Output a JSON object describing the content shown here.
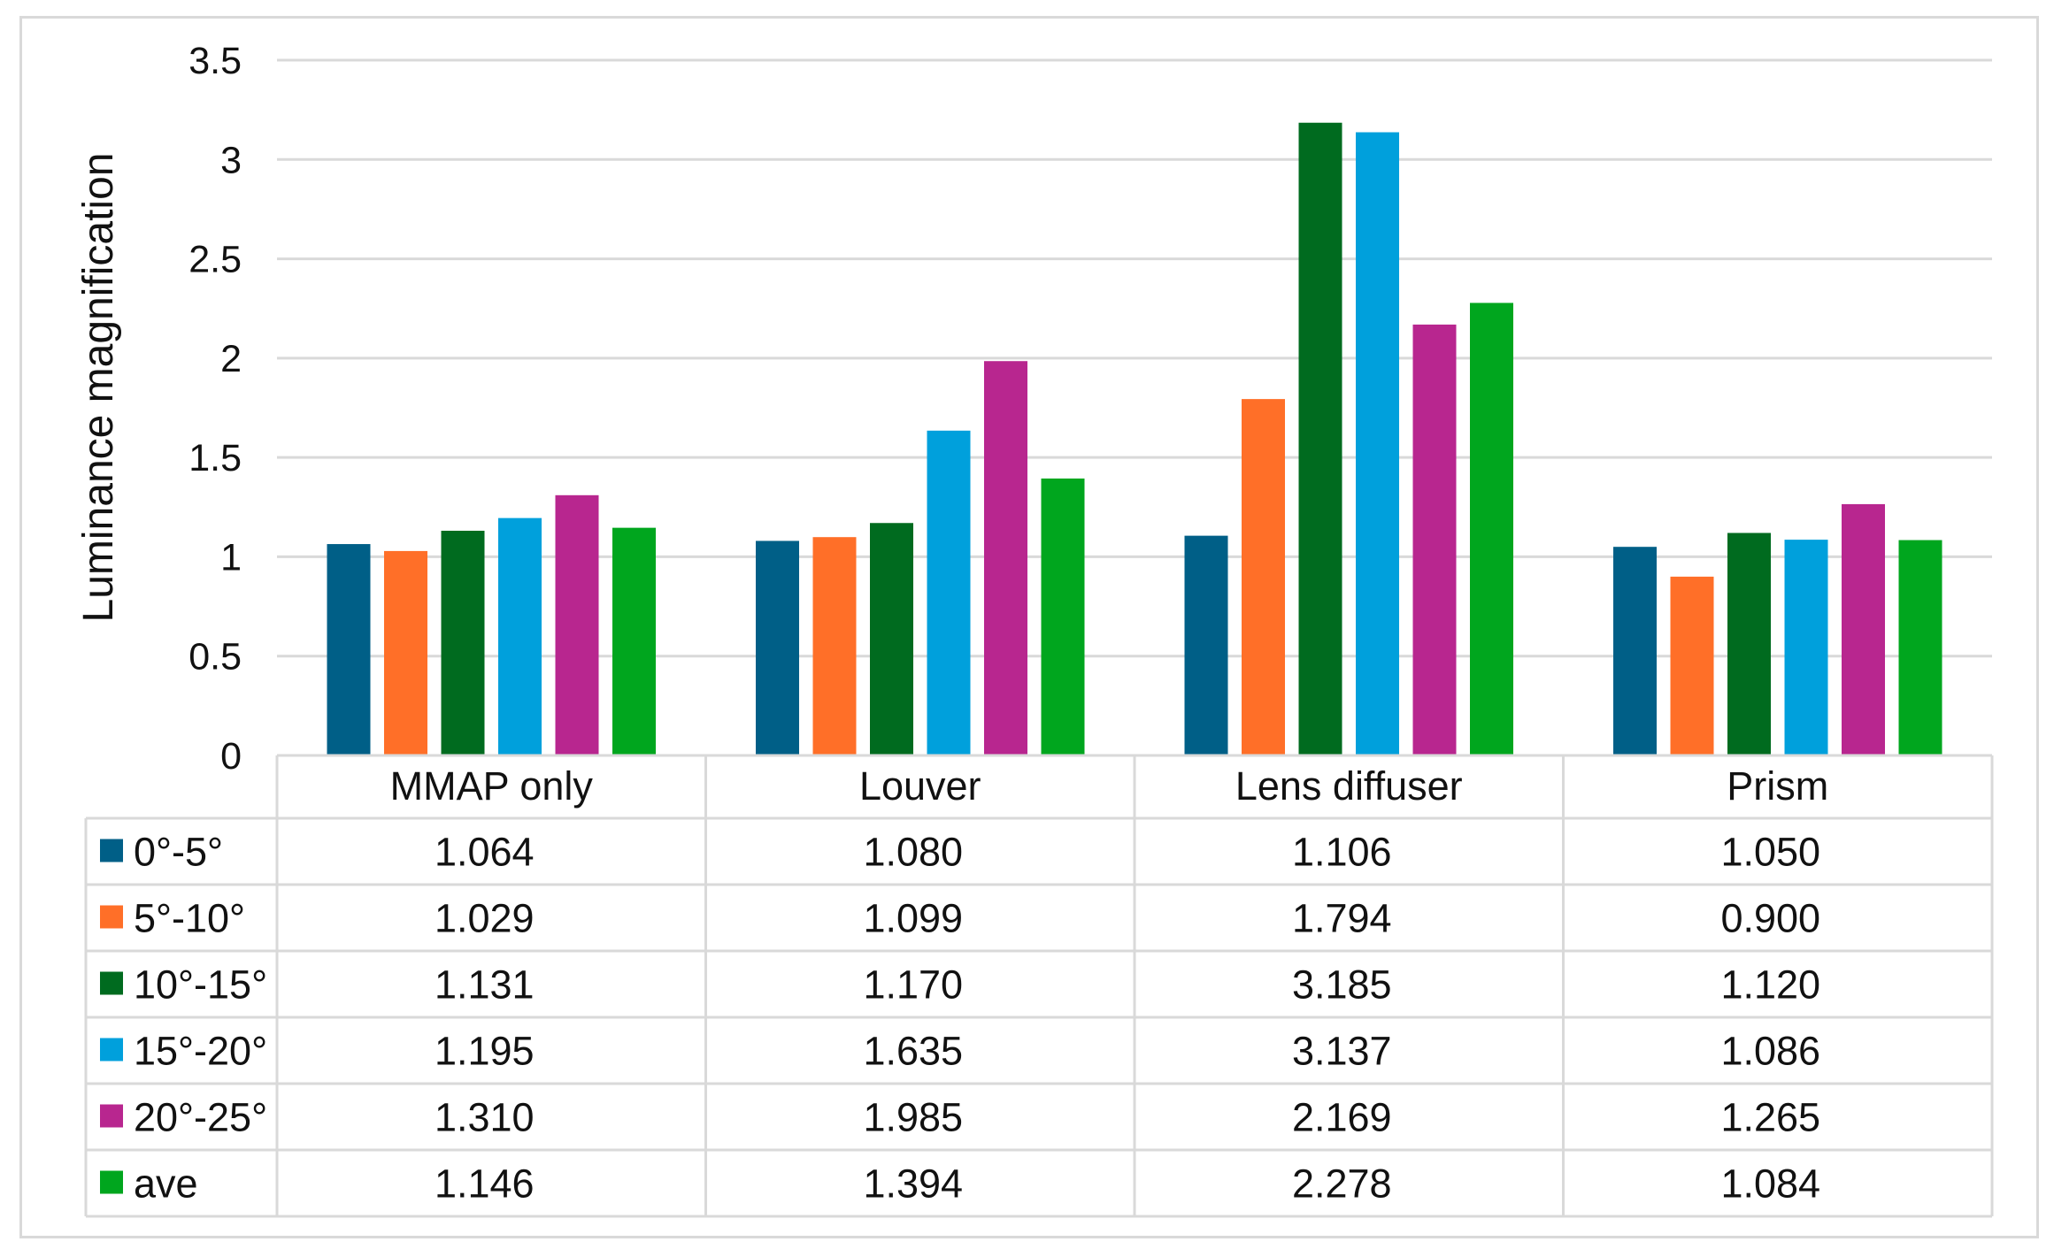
{
  "chart_data": {
    "type": "bar",
    "title": "",
    "xlabel": "",
    "ylabel": "Luminance magnification",
    "ylim": [
      0,
      3.5
    ],
    "yticks": [
      "0",
      "0.5",
      "1",
      "1.5",
      "2",
      "2.5",
      "3",
      "3.5"
    ],
    "grid": true,
    "legend": "data-table-left",
    "categories": [
      "MMAP only",
      "Louver",
      "Lens diffuser",
      "Prism"
    ],
    "series": [
      {
        "name": "0°-5°",
        "color": "#005f87",
        "values": [
          1.064,
          1.08,
          1.106,
          1.05
        ],
        "labels": [
          "1.064",
          "1.080",
          "1.106",
          "1.050"
        ]
      },
      {
        "name": "5°-10°",
        "color": "#ff6f28",
        "values": [
          1.029,
          1.099,
          1.794,
          0.9
        ],
        "labels": [
          "1.029",
          "1.099",
          "1.794",
          "0.900"
        ]
      },
      {
        "name": "10°-15°",
        "color": "#006b1f",
        "values": [
          1.131,
          1.17,
          3.185,
          1.12
        ],
        "labels": [
          "1.131",
          "1.170",
          "3.185",
          "1.120"
        ]
      },
      {
        "name": "15°-20°",
        "color": "#00a0dc",
        "values": [
          1.195,
          1.635,
          3.137,
          1.086
        ],
        "labels": [
          "1.195",
          "1.635",
          "3.137",
          "1.086"
        ]
      },
      {
        "name": "20°-25°",
        "color": "#b8268f",
        "values": [
          1.31,
          1.985,
          2.169,
          1.265
        ],
        "labels": [
          "1.310",
          "1.985",
          "2.169",
          "1.265"
        ]
      },
      {
        "name": "ave",
        "color": "#00a61e",
        "values": [
          1.146,
          1.394,
          2.278,
          1.084
        ],
        "labels": [
          "1.146",
          "1.394",
          "2.278",
          "1.084"
        ]
      }
    ]
  }
}
